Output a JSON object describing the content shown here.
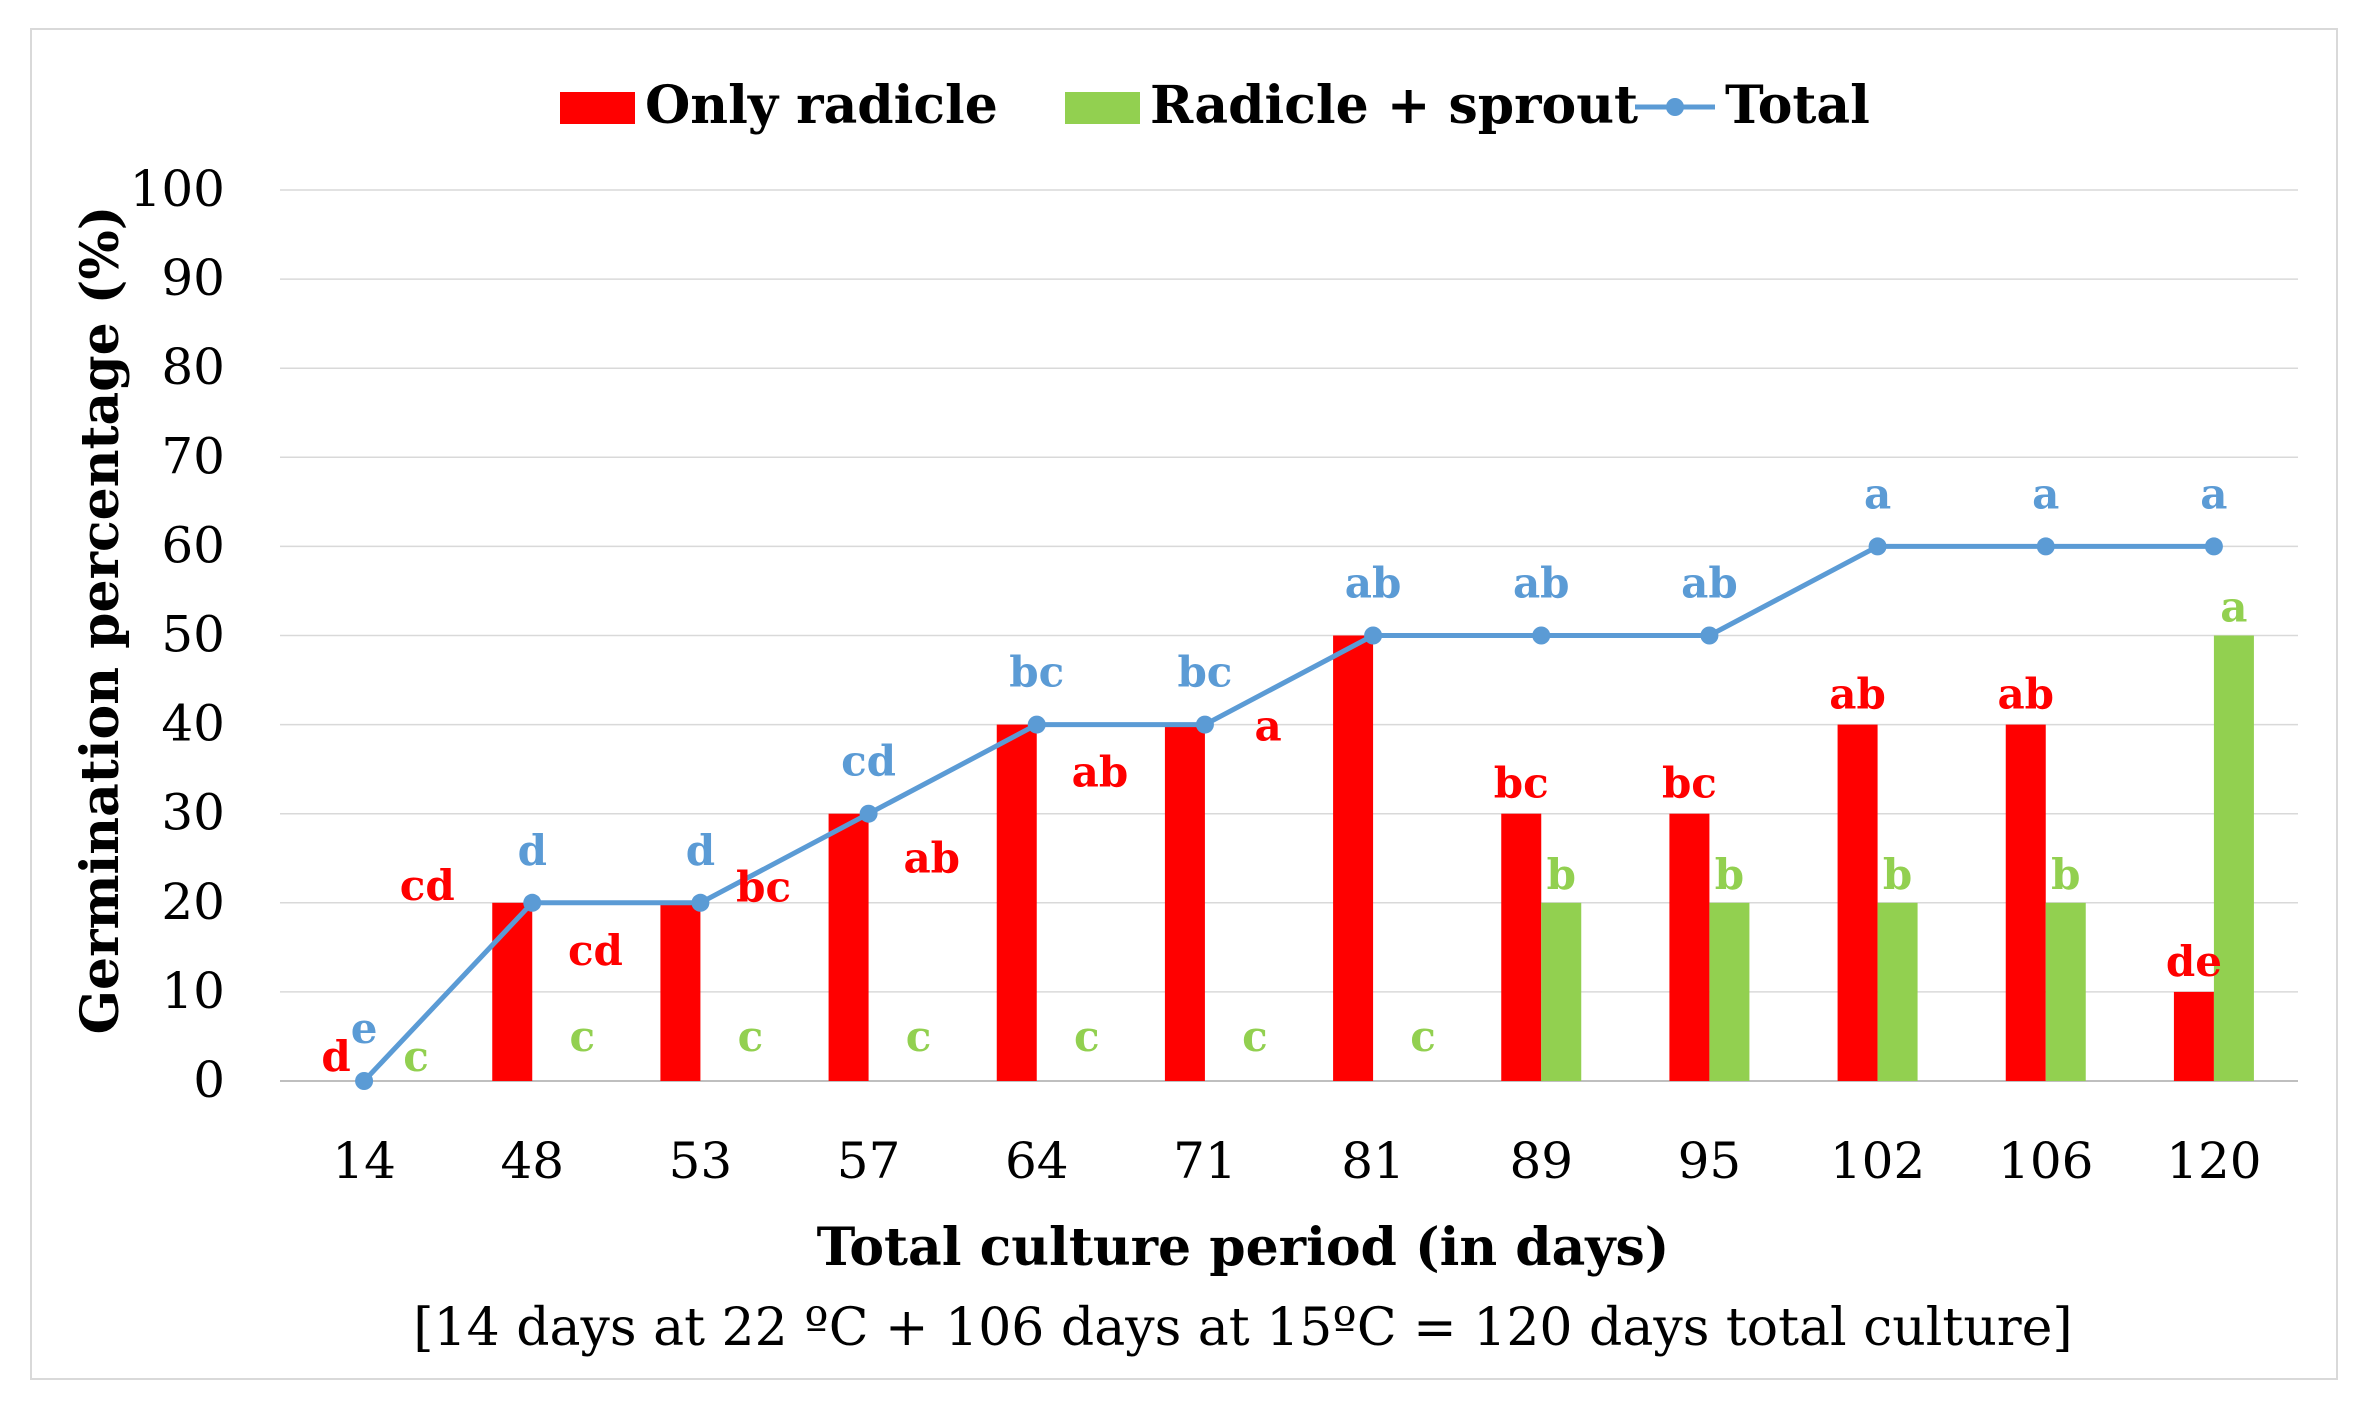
{
  "chart_data": {
    "type": "bar",
    "categories": [
      "14",
      "48",
      "53",
      "57",
      "64",
      "71",
      "81",
      "89",
      "95",
      "102",
      "106",
      "120"
    ],
    "series": [
      {
        "name": "Only radicle",
        "kind": "bar",
        "color": "#ff0000",
        "values": [
          0,
          20,
          20,
          30,
          40,
          40,
          50,
          30,
          30,
          40,
          40,
          10
        ],
        "letters": [
          "d",
          "cd",
          "cd",
          "bc",
          "ab",
          "ab",
          "a",
          "bc",
          "bc",
          "ab",
          "ab",
          "de"
        ]
      },
      {
        "name": "Radicle + sprout",
        "kind": "bar",
        "color": "#92d050",
        "values": [
          0,
          0,
          0,
          0,
          0,
          0,
          0,
          20,
          20,
          20,
          20,
          50
        ],
        "letters": [
          "c",
          "c",
          "c",
          "c",
          "c",
          "c",
          "c",
          "b",
          "b",
          "b",
          "b",
          "a"
        ]
      },
      {
        "name": "Total",
        "kind": "line",
        "color": "#5b9bd5",
        "values": [
          0,
          20,
          20,
          30,
          40,
          40,
          50,
          50,
          50,
          60,
          60,
          60
        ],
        "letters": [
          "e",
          "d",
          "d",
          "cd",
          "bc",
          "bc",
          "ab",
          "ab",
          "ab",
          "a",
          "a",
          "a"
        ]
      }
    ],
    "title": "",
    "xlabel": "Total culture period (in days)",
    "xnote": "[14 days at 22 ºC + 106 days at 15ºC = 120 days total culture]",
    "ylabel": "Germination percentage (%)",
    "ylim": [
      0,
      100
    ],
    "yticks": [
      "0",
      "10",
      "20",
      "30",
      "40",
      "50",
      "60",
      "70",
      "80",
      "90",
      "100"
    ],
    "grid": true,
    "legend_position": "top"
  }
}
